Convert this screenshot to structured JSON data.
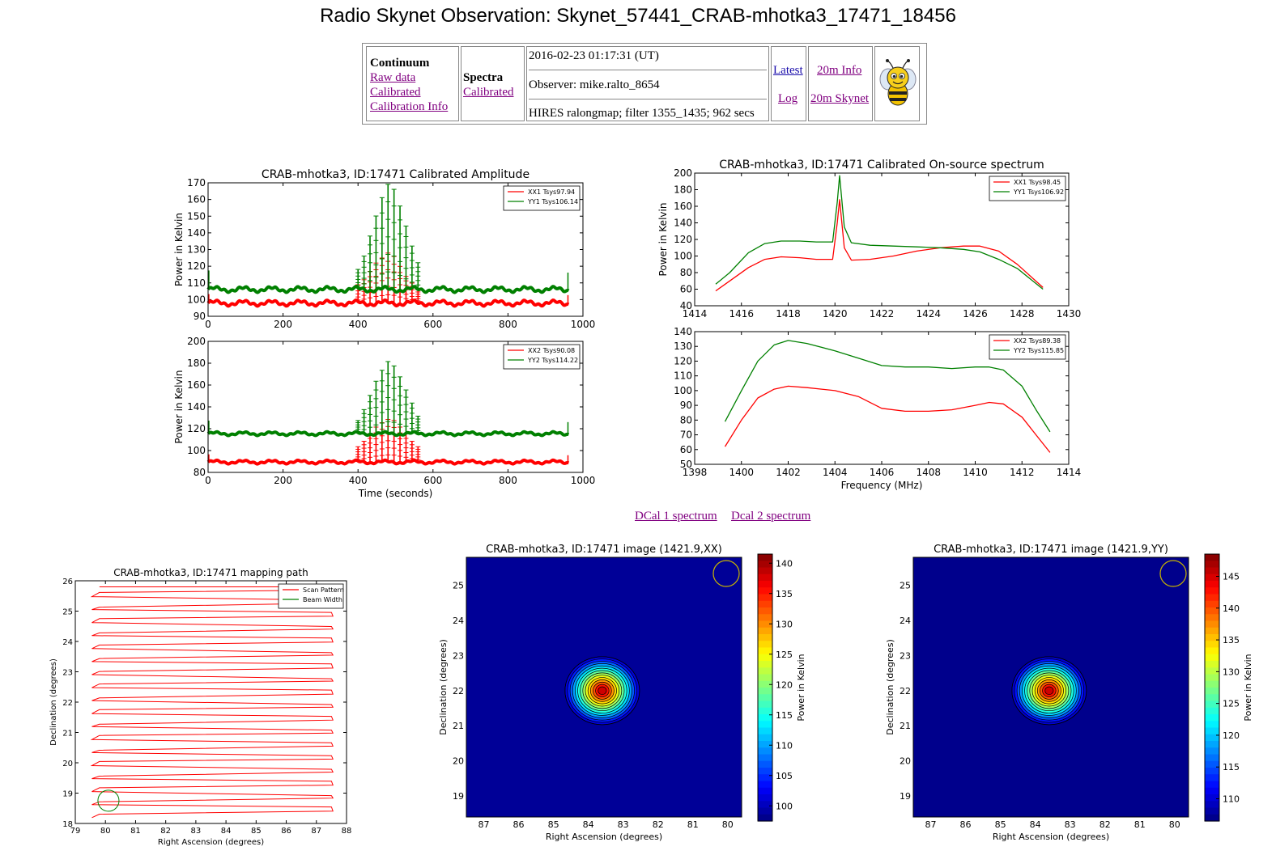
{
  "title": "Radio Skynet Observation: Skynet_57441_CRAB-mhotka3_17471_18456",
  "nav": {
    "continuum": {
      "heading": "Continuum",
      "links": [
        "Raw data",
        "Calibrated",
        "Calibration Info"
      ]
    },
    "spectra": {
      "heading": "Spectra",
      "links": [
        "Calibrated"
      ]
    },
    "info": {
      "datetime": "2016-02-23 01:17:31 (UT)",
      "observer": "Observer: mike.ralto_8654",
      "details": "HIRES ralongmap; filter 1355_1435; 962 secs"
    },
    "col4": [
      "Latest",
      "Log"
    ],
    "col5": [
      "20m Info",
      "20m Skynet"
    ],
    "logo_icon": "bee-icon"
  },
  "spectrum_links": [
    "DCal 1 spectrum",
    "Dcal 2 spectrum"
  ],
  "colors": {
    "red": "#ff0000",
    "green": "#008000",
    "link": "#800080"
  },
  "chart_data": [
    {
      "id": "amp1",
      "type": "line",
      "title": "CRAB-mhotka3, ID:17471 Calibrated Amplitude",
      "xlabel": "",
      "ylabel": "Power in Kelvin",
      "xlim": [
        0,
        1000
      ],
      "ylim": [
        90,
        170
      ],
      "xticks": [
        0,
        200,
        400,
        600,
        800,
        1000
      ],
      "yticks": [
        90,
        100,
        110,
        120,
        130,
        140,
        150,
        160,
        170
      ],
      "legend": "top-right",
      "series": [
        {
          "name": "XX1 Tsys97.94",
          "color": "#ff0000",
          "baseline": 97.9,
          "peaks": [
            11,
            14,
            19,
            24,
            27,
            30,
            28,
            22,
            16,
            12,
            8
          ]
        },
        {
          "name": "YY1 Tsys106.14",
          "color": "#008000",
          "baseline": 106.1,
          "peaks": [
            12,
            20,
            32,
            44,
            55,
            63,
            60,
            50,
            38,
            26,
            16
          ]
        }
      ]
    },
    {
      "id": "amp2",
      "type": "line",
      "title": "",
      "xlabel": "Time (seconds)",
      "ylabel": "Power in Kelvin",
      "xlim": [
        0,
        1000
      ],
      "ylim": [
        80,
        200
      ],
      "xticks": [
        0,
        200,
        400,
        600,
        800,
        1000
      ],
      "yticks": [
        80,
        100,
        120,
        140,
        160,
        180,
        200
      ],
      "legend": "top-right",
      "series": [
        {
          "name": "XX2 Tsys90.08",
          "color": "#ff0000",
          "baseline": 89.5,
          "peaks": [
            14,
            19,
            26,
            32,
            36,
            39,
            38,
            32,
            26,
            19,
            14
          ]
        },
        {
          "name": "YY2 Tsys114.22",
          "color": "#008000",
          "baseline": 115.5,
          "peaks": [
            12,
            22,
            35,
            48,
            58,
            66,
            62,
            52,
            40,
            28,
            16
          ]
        }
      ]
    },
    {
      "id": "spec1",
      "type": "line",
      "title": "CRAB-mhotka3, ID:17471 Calibrated On-source spectrum",
      "xlabel": "",
      "ylabel": "Power in Kelvin",
      "xlim": [
        1414,
        1430
      ],
      "ylim": [
        40,
        200
      ],
      "xticks": [
        1414,
        1416,
        1418,
        1420,
        1422,
        1424,
        1426,
        1428,
        1430
      ],
      "yticks": [
        40,
        60,
        80,
        100,
        120,
        140,
        160,
        180,
        200
      ],
      "legend": "top-right",
      "series": [
        {
          "name": "XX1 Tsys98.45",
          "color": "#ff0000",
          "x": [
            1414.9,
            1415.5,
            1416.3,
            1417,
            1417.7,
            1418.5,
            1419.2,
            1419.9,
            1420.1,
            1420.2,
            1420.4,
            1420.7,
            1421.5,
            1422.5,
            1423.5,
            1424.5,
            1425.5,
            1426.2,
            1427,
            1427.8,
            1428.9
          ],
          "y": [
            58,
            70,
            86,
            96,
            99,
            98,
            96,
            96,
            140,
            168,
            110,
            95,
            96,
            100,
            106,
            110,
            112,
            112,
            106,
            90,
            62
          ]
        },
        {
          "name": "YY1 Tsys106.92",
          "color": "#008000",
          "x": [
            1414.9,
            1415.5,
            1416.3,
            1417,
            1417.7,
            1418.5,
            1419.2,
            1419.9,
            1420.1,
            1420.2,
            1420.4,
            1420.7,
            1421.5,
            1422.5,
            1423.5,
            1424.5,
            1425.5,
            1426.2,
            1427,
            1427.8,
            1428.9
          ],
          "y": [
            66,
            80,
            104,
            115,
            118,
            118,
            117,
            117,
            165,
            197,
            135,
            116,
            113,
            112,
            111,
            110,
            108,
            105,
            96,
            85,
            60
          ]
        }
      ]
    },
    {
      "id": "spec2",
      "type": "line",
      "title": "",
      "xlabel": "Frequency (MHz)",
      "ylabel": "",
      "xlim": [
        1398,
        1414
      ],
      "ylim": [
        50,
        140
      ],
      "xticks": [
        1398,
        1400,
        1402,
        1404,
        1406,
        1408,
        1410,
        1412,
        1414
      ],
      "yticks": [
        50,
        60,
        70,
        80,
        90,
        100,
        110,
        120,
        130,
        140
      ],
      "legend": "top-right",
      "series": [
        {
          "name": "XX2 Tsys89.38",
          "color": "#ff0000",
          "x": [
            1399.3,
            1400,
            1400.7,
            1401.4,
            1402,
            1402.8,
            1404,
            1405,
            1406,
            1407,
            1408,
            1409,
            1410,
            1410.6,
            1411.2,
            1412,
            1412.6,
            1413.2
          ],
          "y": [
            62,
            80,
            95,
            101,
            103,
            102,
            100,
            96,
            88,
            86,
            86,
            87,
            90,
            92,
            91,
            82,
            70,
            58
          ]
        },
        {
          "name": "YY2 Tsys115.85",
          "color": "#008000",
          "x": [
            1399.3,
            1400,
            1400.7,
            1401.4,
            1402,
            1402.8,
            1404,
            1405,
            1406,
            1407,
            1408,
            1409,
            1410,
            1410.6,
            1411.2,
            1412,
            1412.6,
            1413.2
          ],
          "y": [
            79,
            100,
            120,
            131,
            134,
            132,
            127,
            122,
            117,
            116,
            116,
            115,
            116,
            116,
            114,
            103,
            87,
            72
          ]
        }
      ]
    },
    {
      "id": "map",
      "type": "line",
      "title": "CRAB-mhotka3, ID:17471 mapping path",
      "xlabel": "Right Ascension (degrees)",
      "ylabel": "Declination (degrees)",
      "xlim": [
        79,
        88
      ],
      "ylim": [
        18,
        26
      ],
      "xticks": [
        79,
        80,
        81,
        82,
        83,
        84,
        85,
        86,
        87,
        88
      ],
      "yticks": [
        18,
        19,
        20,
        21,
        22,
        23,
        24,
        25,
        26
      ],
      "legend": "top-right",
      "ra_range": [
        79.8,
        87.5
      ],
      "dec_range": [
        18.3,
        25.8
      ],
      "scan_rows": 36,
      "series": [
        {
          "name": "Scan Pattern",
          "color": "#ff0000"
        },
        {
          "name": "Beam Width",
          "color": "#008000",
          "center": [
            80.1,
            18.75
          ],
          "radius": 0.35
        }
      ]
    },
    {
      "id": "imgxx",
      "type": "heatmap",
      "title": "CRAB-mhotka3, ID:17471 image (1421.9,XX)",
      "xlabel": "Right Ascension (degrees)",
      "ylabel": "Declination (degrees)",
      "xlim": [
        87.5,
        79.6
      ],
      "ylim": [
        18.4,
        25.8
      ],
      "xticks": [
        87,
        86,
        85,
        84,
        83,
        82,
        81,
        80
      ],
      "yticks": [
        19,
        20,
        21,
        22,
        23,
        24,
        25
      ],
      "colorbar": {
        "label": "Power in Kelvin",
        "range": [
          97.5,
          141.5
        ],
        "ticks": [
          100,
          105,
          110,
          115,
          120,
          125,
          130,
          135,
          140
        ]
      },
      "source": {
        "ra": 83.6,
        "dec": 22.0,
        "peak": 141,
        "base": 98.5
      }
    },
    {
      "id": "imgyy",
      "type": "heatmap",
      "title": "CRAB-mhotka3, ID:17471 image (1421.9,YY)",
      "xlabel": "Right Ascension (degrees)",
      "ylabel": "Declination (degrees)",
      "xlim": [
        87.5,
        79.6
      ],
      "ylim": [
        18.4,
        25.8
      ],
      "xticks": [
        87,
        86,
        85,
        84,
        83,
        82,
        81,
        80
      ],
      "yticks": [
        19,
        20,
        21,
        22,
        23,
        24,
        25
      ],
      "colorbar": {
        "label": "Power in Kelvin",
        "range": [
          106.5,
          148.5
        ],
        "ticks": [
          110,
          115,
          120,
          125,
          130,
          135,
          140,
          145
        ]
      },
      "source": {
        "ra": 83.6,
        "dec": 22.0,
        "peak": 148,
        "base": 107
      }
    }
  ]
}
